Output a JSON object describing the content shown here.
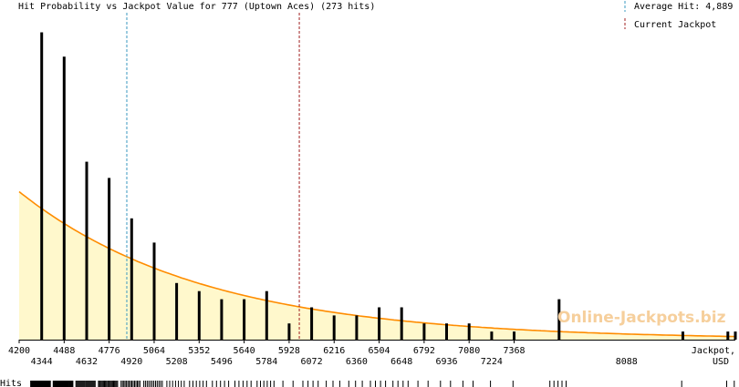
{
  "chart_data": {
    "type": "bar",
    "title": "Hit Probability vs Jackpot Value for 777 (Uptown Aces) (273 hits)",
    "xlabel": "Jackpot,",
    "xunit": "USD",
    "hits_label": "Hits",
    "watermark": "Online-Jackpots.biz",
    "xlim": [
      4200,
      8784
    ],
    "x_ticks_top": [
      "4200",
      "4488",
      "4776",
      "5064",
      "5352",
      "5640",
      "5928",
      "6216",
      "6504",
      "6792",
      "7080",
      "7368"
    ],
    "x_ticks_bottom": [
      "4344",
      "4632",
      "4920",
      "5208",
      "5496",
      "5784",
      "6072",
      "6360",
      "6648",
      "6936",
      "7224",
      "8088"
    ],
    "x_tick_values_top": [
      4200,
      4488,
      4776,
      5064,
      5352,
      5640,
      5928,
      6216,
      6504,
      6792,
      7080,
      7368
    ],
    "x_tick_values_bottom": [
      4344,
      4632,
      4920,
      5208,
      5496,
      5784,
      6072,
      6360,
      6648,
      6936,
      7224,
      8088
    ],
    "bars": [
      {
        "x": 4344,
        "count": 38
      },
      {
        "x": 4488,
        "count": 35
      },
      {
        "x": 4632,
        "count": 22
      },
      {
        "x": 4776,
        "count": 20
      },
      {
        "x": 4920,
        "count": 15
      },
      {
        "x": 5064,
        "count": 12
      },
      {
        "x": 5208,
        "count": 7
      },
      {
        "x": 5352,
        "count": 6
      },
      {
        "x": 5496,
        "count": 5
      },
      {
        "x": 5640,
        "count": 5
      },
      {
        "x": 5784,
        "count": 6
      },
      {
        "x": 5928,
        "count": 2
      },
      {
        "x": 6072,
        "count": 4
      },
      {
        "x": 6216,
        "count": 3
      },
      {
        "x": 6360,
        "count": 3
      },
      {
        "x": 6504,
        "count": 4
      },
      {
        "x": 6648,
        "count": 4
      },
      {
        "x": 6792,
        "count": 2
      },
      {
        "x": 6936,
        "count": 2
      },
      {
        "x": 7080,
        "count": 2
      },
      {
        "x": 7224,
        "count": 1
      },
      {
        "x": 7368,
        "count": 1
      },
      {
        "x": 7656,
        "count": 5
      },
      {
        "x": 8448,
        "count": 1
      },
      {
        "x": 8736,
        "count": 1
      },
      {
        "x": 8784,
        "count": 1
      }
    ],
    "ylim": [
      0,
      42
    ],
    "average_hit": {
      "label": "Average Hit: 4,889",
      "value": 4889,
      "color": "#3a98c0"
    },
    "current_jackpot": {
      "label": "Current Jackpot",
      "value": 5993,
      "color": "#a02020"
    },
    "colors": {
      "bar": "#000000",
      "curve": "#ff8c00",
      "fill": "#fff8cc",
      "axis": "#000000"
    },
    "curve": {
      "type": "exponential",
      "y_at_xmin": 18.3,
      "decay_per_usd": 0.00084
    }
  }
}
